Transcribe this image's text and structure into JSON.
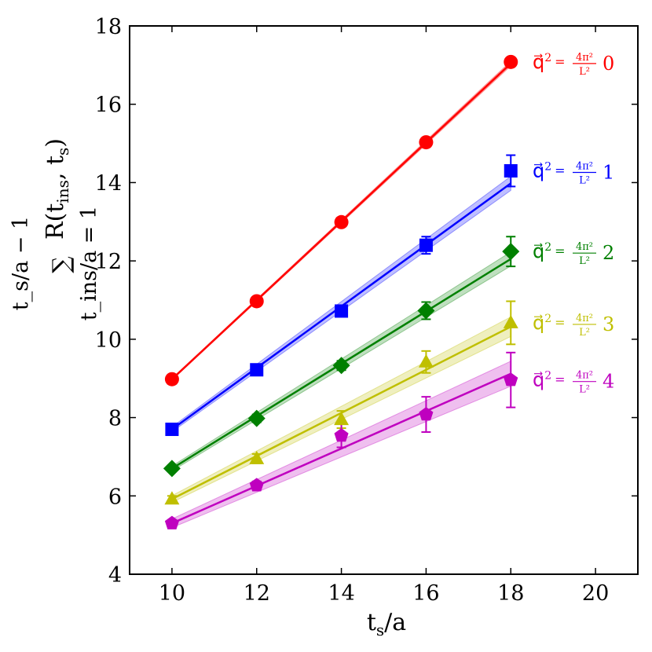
{
  "chart_data": {
    "type": "scatter",
    "title": "",
    "xlabel": "t_s/a",
    "ylabel": "Σ_{t_ins/a=1}^{t_s/a−1} R(t_ins, t_s)",
    "xlim": [
      9,
      21
    ],
    "ylim": [
      4,
      18
    ],
    "xticks": [
      10,
      12,
      14,
      16,
      18,
      20
    ],
    "yticks": [
      4,
      6,
      8,
      10,
      12,
      14,
      16,
      18
    ],
    "grid": false,
    "legend_position": "right, next to each series end",
    "axis_label_text": {
      "x_main": "t",
      "x_sub": "s",
      "x_tail": "/a",
      "y_sigma": "∑",
      "y_upper": "t_s/a − 1",
      "y_lower": "t_ins/a = 1",
      "y_main": "R(t",
      "y_sub1": "ins",
      "y_mid": ", t",
      "y_sub2": "s",
      "y_end": ")"
    },
    "legend_parts": {
      "q": "q⃗",
      "sup": "2",
      "eq": "=",
      "numerator": "4π²",
      "denominator": "L²"
    },
    "series": [
      {
        "name": "q⃗² = 4π²/L² 0",
        "n": "0",
        "color": "#ff0000",
        "marker": "circle",
        "x": [
          10,
          12,
          14,
          16,
          18
        ],
        "y": [
          8.98,
          10.97,
          12.99,
          15.03,
          17.08
        ],
        "yerr": [
          0.05,
          0.05,
          0.06,
          0.07,
          0.09
        ],
        "fit": {
          "x": [
            10,
            18
          ],
          "y": [
            8.98,
            17.04
          ],
          "band": 0.06
        }
      },
      {
        "name": "q⃗² = 4π²/L² 1",
        "n": "1",
        "color": "#0000ff",
        "marker": "square",
        "x": [
          10,
          12,
          14,
          16,
          18
        ],
        "y": [
          7.7,
          9.22,
          10.72,
          12.4,
          14.3
        ],
        "yerr": [
          0.08,
          0.1,
          0.12,
          0.22,
          0.4
        ],
        "fit": {
          "x": [
            10,
            18
          ],
          "y": [
            7.7,
            13.98
          ],
          "band": 0.18
        }
      },
      {
        "name": "q⃗² = 4π²/L² 2",
        "n": "2",
        "color": "#008000",
        "marker": "diamond",
        "x": [
          10,
          12,
          14,
          16,
          18
        ],
        "y": [
          6.7,
          7.98,
          9.33,
          10.73,
          12.24
        ],
        "yerr": [
          0.08,
          0.1,
          0.12,
          0.22,
          0.38
        ],
        "fit": {
          "x": [
            10,
            18
          ],
          "y": [
            6.7,
            12.05
          ],
          "band": 0.18
        }
      },
      {
        "name": "q⃗² = 4π²/L² 3",
        "n": "3",
        "color": "#bfbf00",
        "marker": "triangle",
        "x": [
          10,
          12,
          14,
          16,
          18
        ],
        "y": [
          5.92,
          6.95,
          7.95,
          9.42,
          10.42
        ],
        "yerr": [
          0.08,
          0.12,
          0.22,
          0.28,
          0.55
        ],
        "fit": {
          "x": [
            10,
            18
          ],
          "y": [
            5.92,
            10.32
          ],
          "band": 0.25
        }
      },
      {
        "name": "q⃗² = 4π²/L² 4",
        "n": "4",
        "color": "#bf00bf",
        "marker": "pentagon",
        "x": [
          10,
          12,
          14,
          16,
          18
        ],
        "y": [
          5.3,
          6.27,
          7.54,
          8.08,
          8.96
        ],
        "yerr": [
          0.06,
          0.1,
          0.3,
          0.45,
          0.7
        ],
        "fit": {
          "x": [
            10,
            18
          ],
          "y": [
            5.3,
            9.12
          ],
          "band": 0.32
        }
      }
    ]
  }
}
